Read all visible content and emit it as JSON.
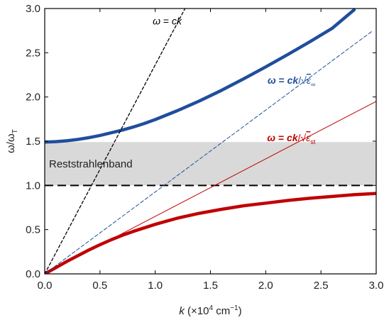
{
  "chart_data": {
    "type": "line",
    "title": "",
    "xlabel": {
      "var": "k",
      "rest": " (×10",
      "exp": "4",
      "rest2": " cm",
      "exp2": "−1",
      "close": ")"
    },
    "ylabel": {
      "main": "ω/ω",
      "sub": "T"
    },
    "xlim": [
      0,
      3.0
    ],
    "ylim": [
      0,
      3.0
    ],
    "x_ticks": [
      "0.0",
      "0.5",
      "1.0",
      "1.5",
      "2.0",
      "2.5",
      "3.0"
    ],
    "y_ticks": [
      "0.0",
      "0.5",
      "1.0",
      "1.5",
      "2.0",
      "2.5",
      "3.0"
    ],
    "grid": false,
    "band": {
      "label": "Reststrahlenband",
      "y_from": 1.0,
      "y_to": 1.49,
      "color": "#d9d9d9"
    },
    "reference_line": {
      "y": 1.0,
      "style": "long-dash",
      "color": "#000000"
    },
    "series": [
      {
        "role": "upper-polariton",
        "color": "#1f4e9c",
        "x": [
          0,
          0.1,
          0.2,
          0.3,
          0.4,
          0.5,
          0.6,
          0.7,
          0.8,
          0.9,
          1.0,
          1.2,
          1.4,
          1.6,
          1.8,
          2.0,
          2.2,
          2.4,
          2.6,
          2.8
        ],
        "y": [
          1.49,
          1.495,
          1.505,
          1.52,
          1.54,
          1.565,
          1.595,
          1.625,
          1.66,
          1.7,
          1.745,
          1.845,
          1.955,
          2.075,
          2.205,
          2.34,
          2.48,
          2.625,
          2.775,
          2.985
        ]
      },
      {
        "role": "lower-polariton",
        "color": "#c00000",
        "x": [
          0,
          0.1,
          0.2,
          0.3,
          0.4,
          0.5,
          0.6,
          0.7,
          0.8,
          0.9,
          1.0,
          1.1,
          1.2,
          1.4,
          1.6,
          1.8,
          2.0,
          2.2,
          2.4,
          2.6,
          2.8,
          3.0
        ],
        "y": [
          0,
          0.07,
          0.14,
          0.205,
          0.27,
          0.33,
          0.385,
          0.435,
          0.48,
          0.52,
          0.56,
          0.595,
          0.63,
          0.685,
          0.73,
          0.77,
          0.8,
          0.83,
          0.855,
          0.875,
          0.895,
          0.91
        ]
      },
      {
        "role": "light-line-vacuum",
        "color": "#000000",
        "dashed": true,
        "x": [
          0,
          1.27
        ],
        "y": [
          0,
          3.0
        ]
      },
      {
        "role": "light-line-high-frequency",
        "color": "#1f4e9c",
        "dashed": true,
        "x": [
          0,
          2.97
        ],
        "y": [
          0,
          2.75
        ]
      },
      {
        "role": "light-line-static",
        "color": "#c00000",
        "dashed": false,
        "x": [
          0,
          3.0
        ],
        "y": [
          0,
          1.95
        ]
      }
    ],
    "annotations": [
      {
        "text_omega": "ω",
        "text_eq": " = ",
        "text_ck": "ck",
        "sub": "",
        "color": "#000000",
        "x": 1.24,
        "y": 2.82
      },
      {
        "text_omega": "ω",
        "text_eq": " = ",
        "text_ck": "ck",
        "root": "/√",
        "eps": "ε",
        "sub": "∞",
        "color": "#1f4e9c",
        "x": 2.45,
        "y": 2.15
      },
      {
        "text_omega": "ω",
        "text_eq": " = ",
        "text_ck": "ck",
        "root": "/√",
        "eps": "ε",
        "sub": "st",
        "color": "#c00000",
        "x": 2.45,
        "y": 1.5
      }
    ]
  }
}
